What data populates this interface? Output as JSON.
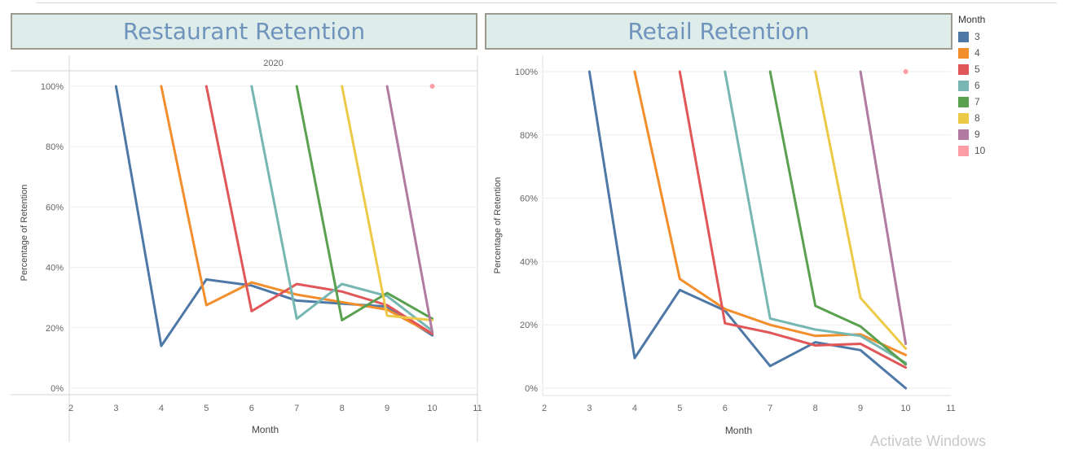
{
  "titles": {
    "left": "Restaurant Retention",
    "right": "Retail Retention"
  },
  "legend": {
    "title": "Month",
    "items": [
      {
        "label": "3",
        "color": "#4e79a7"
      },
      {
        "label": "4",
        "color": "#f28e2b"
      },
      {
        "label": "5",
        "color": "#e15759"
      },
      {
        "label": "6",
        "color": "#76b7b2"
      },
      {
        "label": "7",
        "color": "#59a14f"
      },
      {
        "label": "8",
        "color": "#edc948"
      },
      {
        "label": "9",
        "color": "#b07aa1"
      },
      {
        "label": "10",
        "color": "#ff9da7"
      }
    ]
  },
  "watermark": "Activate Windows",
  "chart_data": [
    {
      "type": "line",
      "title": "Restaurant Retention",
      "column_header": "2020",
      "xlabel": "Month",
      "ylabel": "Percentage of Retention",
      "xlim": [
        2,
        11
      ],
      "ylim": [
        0,
        100
      ],
      "x_ticks": [
        2,
        3,
        4,
        5,
        6,
        7,
        8,
        9,
        10,
        11
      ],
      "y_ticks": [
        0,
        20,
        40,
        60,
        80,
        100
      ],
      "legend_position": "right",
      "series": [
        {
          "name": "3",
          "color": "#4e79a7",
          "points": [
            [
              3,
              100
            ],
            [
              4,
              14
            ],
            [
              5,
              36
            ],
            [
              6,
              34
            ],
            [
              7,
              29
            ],
            [
              8,
              28
            ],
            [
              9,
              27
            ],
            [
              10,
              17.5
            ]
          ]
        },
        {
          "name": "4",
          "color": "#f28e2b",
          "points": [
            [
              4,
              100
            ],
            [
              5,
              27.5
            ],
            [
              6,
              35
            ],
            [
              7,
              31
            ],
            [
              8,
              28.5
            ],
            [
              9,
              26
            ],
            [
              10,
              18
            ]
          ]
        },
        {
          "name": "5",
          "color": "#e15759",
          "points": [
            [
              5,
              100
            ],
            [
              6,
              25.5
            ],
            [
              7,
              34.5
            ],
            [
              8,
              32
            ],
            [
              9,
              27.5
            ],
            [
              10,
              18
            ]
          ]
        },
        {
          "name": "6",
          "color": "#76b7b2",
          "points": [
            [
              6,
              100
            ],
            [
              7,
              23
            ],
            [
              8,
              34.5
            ],
            [
              9,
              30.5
            ],
            [
              10,
              19
            ]
          ]
        },
        {
          "name": "7",
          "color": "#59a14f",
          "points": [
            [
              7,
              100
            ],
            [
              8,
              22.5
            ],
            [
              9,
              31.5
            ],
            [
              10,
              23
            ]
          ]
        },
        {
          "name": "8",
          "color": "#edc948",
          "points": [
            [
              8,
              100
            ],
            [
              9,
              24
            ],
            [
              10,
              22.5
            ]
          ]
        },
        {
          "name": "9",
          "color": "#b07aa1",
          "points": [
            [
              9,
              100
            ],
            [
              10,
              18.5
            ]
          ]
        },
        {
          "name": "10",
          "color": "#ff9da7",
          "points": [
            [
              10,
              100
            ]
          ]
        }
      ]
    },
    {
      "type": "line",
      "title": "Retail Retention",
      "xlabel": "Month",
      "ylabel": "Percentage of Retention",
      "xlim": [
        2,
        11
      ],
      "ylim": [
        0,
        100
      ],
      "x_ticks": [
        2,
        3,
        4,
        5,
        6,
        7,
        8,
        9,
        10,
        11
      ],
      "y_ticks": [
        0,
        20,
        40,
        60,
        80,
        100
      ],
      "legend_position": "right",
      "series": [
        {
          "name": "3",
          "color": "#4e79a7",
          "points": [
            [
              3,
              100
            ],
            [
              4,
              9.5
            ],
            [
              5,
              31
            ],
            [
              6,
              24.5
            ],
            [
              7,
              7
            ],
            [
              8,
              14.5
            ],
            [
              9,
              12
            ],
            [
              10,
              0
            ]
          ]
        },
        {
          "name": "4",
          "color": "#f28e2b",
          "points": [
            [
              4,
              100
            ],
            [
              5,
              34.5
            ],
            [
              6,
              25
            ],
            [
              7,
              20
            ],
            [
              8,
              16.5
            ],
            [
              9,
              17
            ],
            [
              10,
              10.5
            ]
          ]
        },
        {
          "name": "5",
          "color": "#e15759",
          "points": [
            [
              5,
              100
            ],
            [
              6,
              20.5
            ],
            [
              7,
              17.5
            ],
            [
              8,
              13.5
            ],
            [
              9,
              14
            ],
            [
              10,
              6.5
            ]
          ]
        },
        {
          "name": "6",
          "color": "#76b7b2",
          "points": [
            [
              6,
              100
            ],
            [
              7,
              22
            ],
            [
              8,
              18.5
            ],
            [
              9,
              16.5
            ],
            [
              10,
              8
            ]
          ]
        },
        {
          "name": "7",
          "color": "#59a14f",
          "points": [
            [
              7,
              100
            ],
            [
              8,
              26
            ],
            [
              9,
              19.5
            ],
            [
              10,
              7.5
            ]
          ]
        },
        {
          "name": "8",
          "color": "#edc948",
          "points": [
            [
              8,
              100
            ],
            [
              9,
              28.5
            ],
            [
              10,
              12.5
            ]
          ]
        },
        {
          "name": "9",
          "color": "#b07aa1",
          "points": [
            [
              9,
              100
            ],
            [
              10,
              14
            ]
          ]
        },
        {
          "name": "10",
          "color": "#ff9da7",
          "points": [
            [
              10,
              100
            ]
          ]
        }
      ]
    }
  ]
}
